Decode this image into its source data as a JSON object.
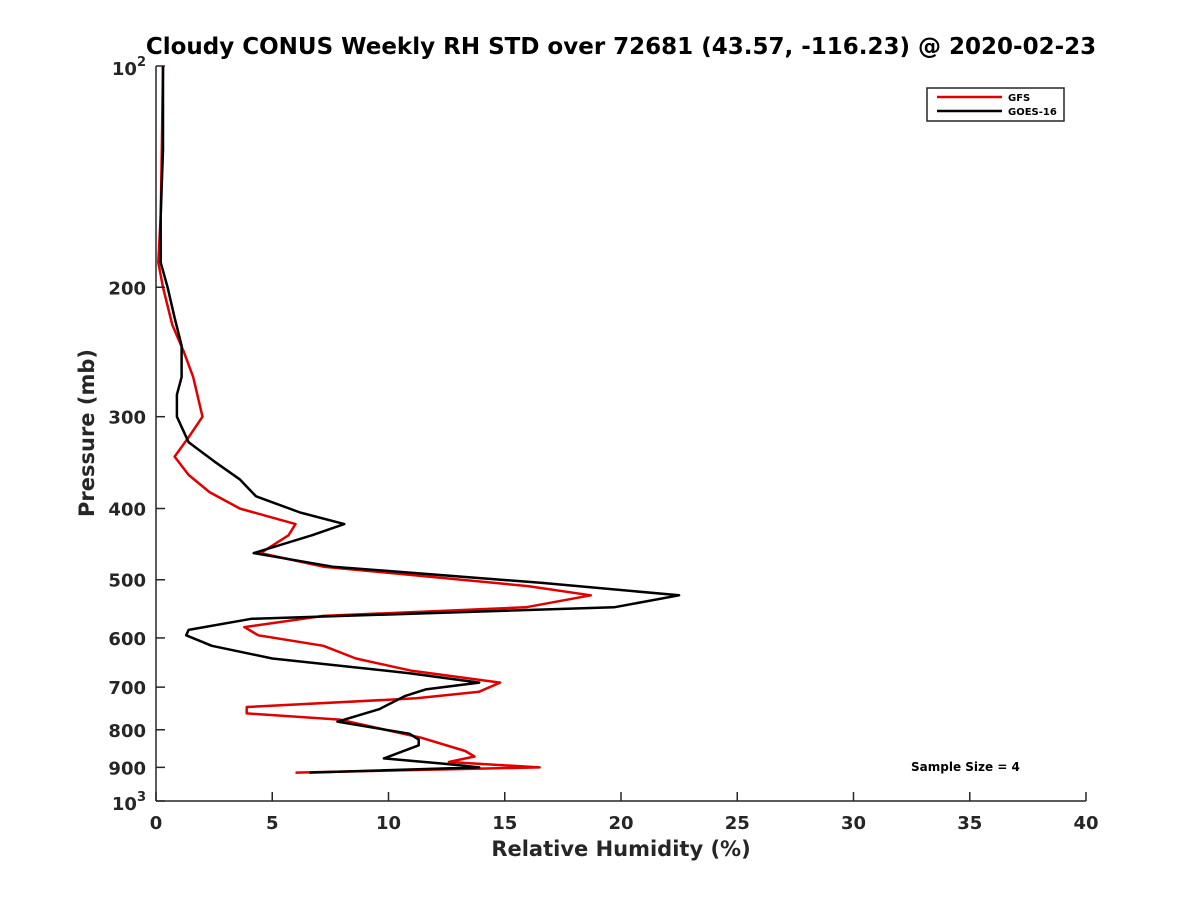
{
  "chart_data": {
    "type": "line",
    "title": "Cloudy CONUS Weekly RH STD over 72681 (43.57, -116.23) @ 2020-02-23",
    "xlabel": "Relative Humidity (%)",
    "ylabel": "Pressure (mb)",
    "xlim": [
      0,
      40
    ],
    "ylim": [
      100,
      1000
    ],
    "y_scale": "log",
    "y_reversed": true,
    "grid": false,
    "legend_position": "top-right",
    "x_ticks": [
      {
        "value": 0,
        "label": "0"
      },
      {
        "value": 5,
        "label": "5"
      },
      {
        "value": 10,
        "label": "10"
      },
      {
        "value": 15,
        "label": "15"
      },
      {
        "value": 20,
        "label": "20"
      },
      {
        "value": 25,
        "label": "25"
      },
      {
        "value": 30,
        "label": "30"
      },
      {
        "value": 35,
        "label": "35"
      },
      {
        "value": 40,
        "label": "40"
      }
    ],
    "y_ticks": [
      {
        "value": 100,
        "base": "10",
        "exp": "2"
      },
      {
        "value": 200,
        "label": "200"
      },
      {
        "value": 300,
        "label": "300"
      },
      {
        "value": 400,
        "label": "400"
      },
      {
        "value": 500,
        "label": "500"
      },
      {
        "value": 600,
        "label": "600"
      },
      {
        "value": 700,
        "label": "700"
      },
      {
        "value": 800,
        "label": "800"
      },
      {
        "value": 900,
        "label": "900"
      },
      {
        "value": 1000,
        "base": "10",
        "exp": "3"
      }
    ],
    "series": [
      {
        "name": "GFS",
        "color": "#e00000",
        "points": [
          [
            0.3,
            100
          ],
          [
            0.25,
            130
          ],
          [
            0.2,
            160
          ],
          [
            0.1,
            185
          ],
          [
            0.3,
            200
          ],
          [
            0.7,
            225
          ],
          [
            1.2,
            245
          ],
          [
            1.6,
            265
          ],
          [
            2.0,
            300
          ],
          [
            1.4,
            320
          ],
          [
            0.8,
            340
          ],
          [
            1.4,
            360
          ],
          [
            2.3,
            380
          ],
          [
            3.6,
            400
          ],
          [
            6.0,
            420
          ],
          [
            5.7,
            435
          ],
          [
            4.5,
            460
          ],
          [
            7.2,
            480
          ],
          [
            16.0,
            510
          ],
          [
            18.7,
            525
          ],
          [
            15.9,
            545
          ],
          [
            7.2,
            560
          ],
          [
            3.8,
            580
          ],
          [
            4.4,
            595
          ],
          [
            7.2,
            615
          ],
          [
            8.6,
            640
          ],
          [
            11.0,
            665
          ],
          [
            14.8,
            690
          ],
          [
            13.9,
            710
          ],
          [
            11.2,
            725
          ],
          [
            3.9,
            745
          ],
          [
            3.9,
            760
          ],
          [
            7.9,
            775
          ],
          [
            11.4,
            820
          ],
          [
            13.3,
            855
          ],
          [
            13.7,
            870
          ],
          [
            12.6,
            885
          ],
          [
            16.5,
            900
          ],
          [
            6.0,
            915
          ]
        ]
      },
      {
        "name": "GOES-16",
        "color": "#000000",
        "points": [
          [
            0.3,
            100
          ],
          [
            0.3,
            130
          ],
          [
            0.2,
            160
          ],
          [
            0.2,
            185
          ],
          [
            0.5,
            200
          ],
          [
            0.8,
            220
          ],
          [
            1.1,
            240
          ],
          [
            1.1,
            265
          ],
          [
            0.9,
            280
          ],
          [
            0.9,
            300
          ],
          [
            1.4,
            325
          ],
          [
            2.5,
            345
          ],
          [
            3.6,
            365
          ],
          [
            4.3,
            385
          ],
          [
            6.2,
            405
          ],
          [
            8.1,
            420
          ],
          [
            6.7,
            435
          ],
          [
            4.2,
            460
          ],
          [
            7.6,
            480
          ],
          [
            16.6,
            505
          ],
          [
            22.5,
            525
          ],
          [
            19.7,
            545
          ],
          [
            4.1,
            565
          ],
          [
            1.4,
            585
          ],
          [
            1.3,
            595
          ],
          [
            2.4,
            615
          ],
          [
            5.0,
            640
          ],
          [
            10.9,
            670
          ],
          [
            13.9,
            690
          ],
          [
            11.6,
            705
          ],
          [
            10.7,
            720
          ],
          [
            9.6,
            750
          ],
          [
            7.8,
            780
          ],
          [
            10.9,
            810
          ],
          [
            11.3,
            825
          ],
          [
            11.3,
            840
          ],
          [
            9.8,
            875
          ],
          [
            12.4,
            890
          ],
          [
            13.9,
            900
          ],
          [
            6.6,
            915
          ]
        ]
      }
    ],
    "annotations": [
      {
        "text": "Sample Size = 4"
      }
    ]
  }
}
